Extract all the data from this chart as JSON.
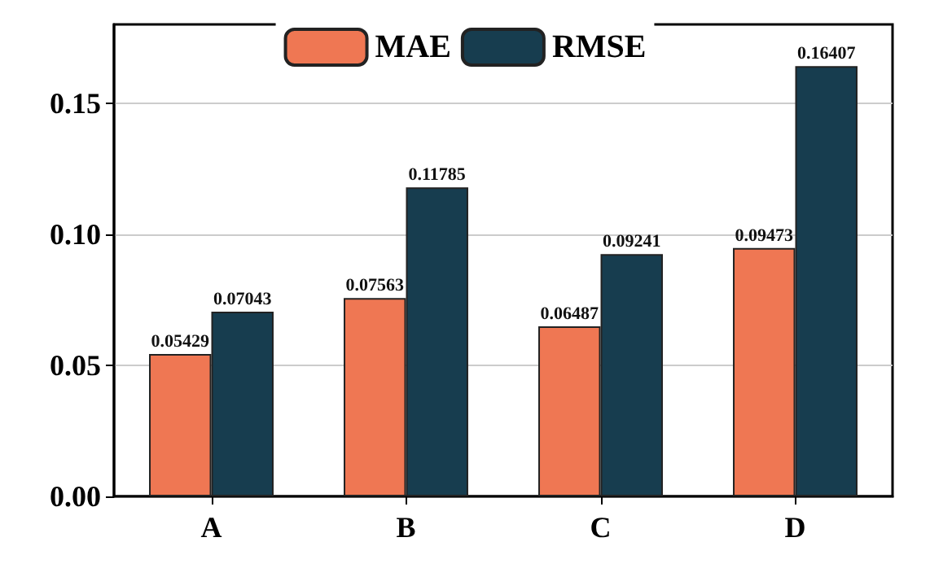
{
  "chart_data": {
    "type": "bar",
    "categories": [
      "A",
      "B",
      "C",
      "D"
    ],
    "series": [
      {
        "name": "MAE",
        "color": "#ef7753",
        "values": [
          0.05429,
          0.07563,
          0.06487,
          0.09473
        ]
      },
      {
        "name": "RMSE",
        "color": "#173d4f",
        "values": [
          0.07043,
          0.11785,
          0.09241,
          0.16407
        ]
      }
    ],
    "ylim": [
      0,
      0.18
    ],
    "yticks": [
      {
        "value": 0,
        "label": "0.00"
      },
      0.05,
      {
        "value": 0.1,
        "label": "0.10"
      },
      0.15
    ],
    "grid": "y",
    "legend": "top",
    "data_labels": true
  }
}
